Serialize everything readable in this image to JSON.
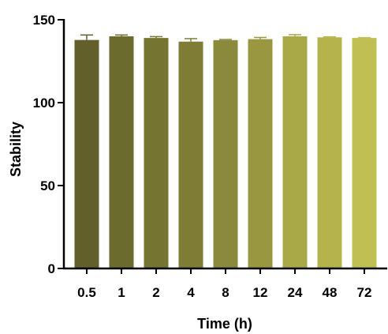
{
  "chart_data": {
    "type": "bar",
    "title": "",
    "xlabel": "Time (h)",
    "ylabel": "Stability",
    "categories": [
      "0.5",
      "1",
      "2",
      "4",
      "8",
      "12",
      "24",
      "48",
      "72"
    ],
    "values": [
      137.8,
      140.0,
      139.0,
      136.8,
      137.7,
      138.3,
      140.0,
      139.4,
      139.0
    ],
    "errors": [
      3.0,
      0.8,
      0.8,
      1.8,
      0.4,
      1.0,
      1.0,
      0.3,
      0.2
    ],
    "ylim": [
      0,
      150
    ],
    "yticks": [
      0,
      50,
      100,
      150
    ],
    "bar_colors": [
      "#625f2a",
      "#6c6b2e",
      "#757431",
      "#7f7d35",
      "#8b893b",
      "#999840",
      "#a9a947",
      "#b5b44c",
      "#c0bf53"
    ],
    "grid": false,
    "legend": "none"
  }
}
